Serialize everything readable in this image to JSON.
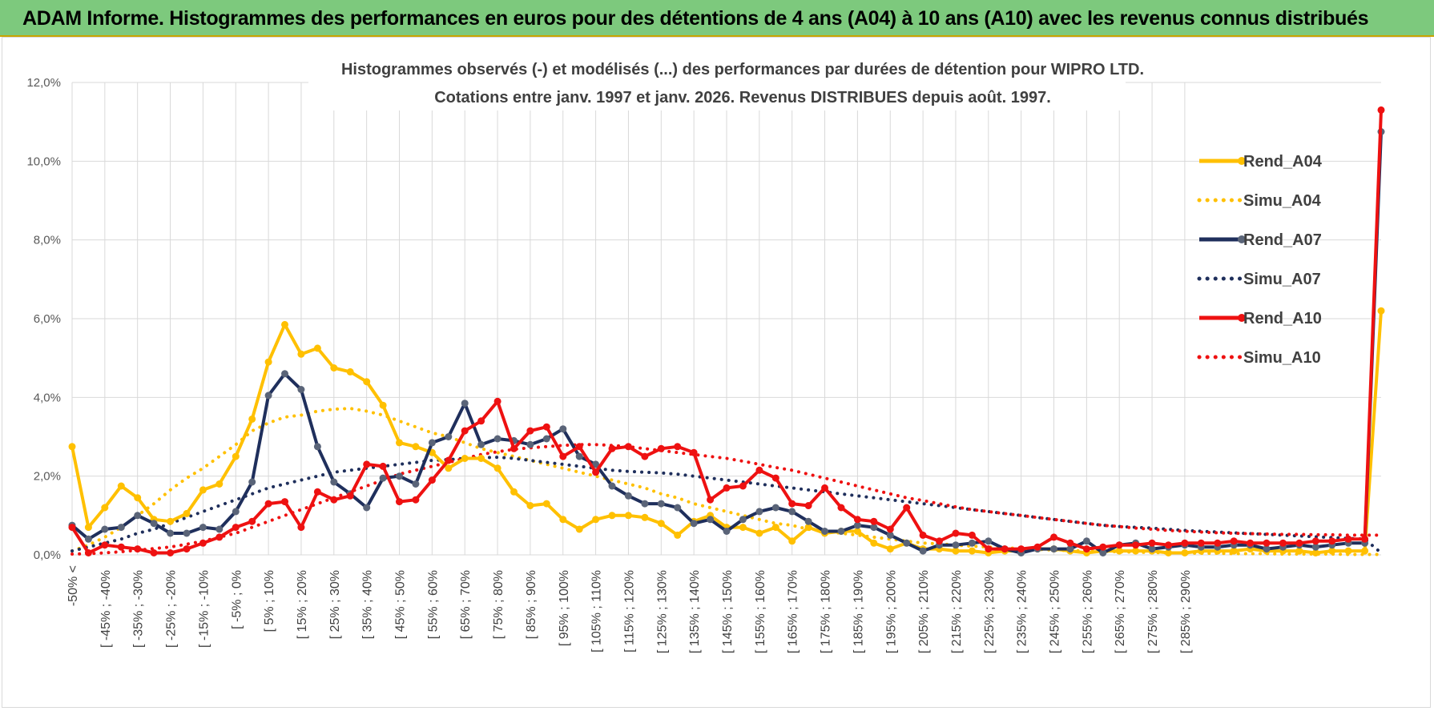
{
  "header": {
    "title": "ADAM Informe. Histogrammes des performances en euros pour des détentions de 4 ans (A04) à 10 ans (A10) avec les revenus connus distribués"
  },
  "colors": {
    "header_bg": "#7dc97d",
    "A04": "#ffc000",
    "A07": "#1f2f5c",
    "A07_marker": "#5a6478",
    "A10": "#ee1111"
  },
  "chart_data": {
    "type": "line",
    "title_lines": [
      "Histogrammes observés (-) et modélisés (...) des performances par durées de détention pour WIPRO LTD.",
      "Cotations entre janv. 1997 et janv. 2026. Revenus DISTRIBUES depuis août. 1997."
    ],
    "ylim": [
      0,
      12
    ],
    "yticks": [
      "0,0%",
      "2,0%",
      "4,0%",
      "6,0%",
      "8,0%",
      "10,0%",
      "12,0%"
    ],
    "grid": true,
    "legend_position": "right",
    "xtick_labels": [
      "-50% <",
      "[ -45% ; -40%",
      "[ -35% ; -30%",
      "[ -25% ; -20%",
      "[ -15% ; -10%",
      "[ -5% ; 0%",
      "[ 5% ; 10%",
      "[ 15% ; 20%",
      "[ 25% ; 30%",
      "[ 35% ; 40%",
      "[ 45% ; 50%",
      "[ 55% ; 60%",
      "[ 65% ; 70%",
      "[ 75% ; 80%",
      "[ 85% ; 90%",
      "[ 95% ; 100%",
      "[ 105% ; 110%",
      "[ 115% ; 120%",
      "[ 125% ; 130%",
      "[ 135% ; 140%",
      "[ 145% ; 150%",
      "[ 155% ; 160%",
      "[ 165% ; 170%",
      "[ 175% ; 180%",
      "[ 185% ; 190%",
      "[ 195% ; 200%",
      "[ 205% ; 210%",
      "[ 215% ; 220%",
      "[ 225% ; 230%",
      "[ 235% ; 240%",
      "[ 245% ; 250%",
      "[ 255% ; 260%",
      "[ 265% ; 270%",
      "[ 275% ; 280%",
      "[ 285% ; 290%"
    ],
    "x_range": [
      "-50%",
      "> 295%"
    ],
    "series": [
      {
        "name": "Rend_A04",
        "style": "solid",
        "color": "#ffc000",
        "values": [
          2.75,
          0.7,
          1.2,
          1.75,
          1.45,
          0.9,
          0.85,
          1.05,
          1.65,
          1.8,
          2.5,
          3.45,
          4.9,
          5.85,
          5.1,
          5.25,
          4.75,
          4.65,
          4.4,
          3.8,
          2.85,
          2.75,
          2.6,
          2.2,
          2.45,
          2.45,
          2.2,
          1.6,
          1.25,
          1.3,
          0.9,
          0.65,
          0.9,
          1.0,
          1.0,
          0.95,
          0.8,
          0.5,
          0.85,
          1.0,
          0.7,
          0.7,
          0.55,
          0.7,
          0.35,
          0.7,
          0.55,
          0.6,
          0.6,
          0.3,
          0.15,
          0.3,
          0.15,
          0.15,
          0.1,
          0.1,
          0.05,
          0.1,
          0.1,
          0.15,
          0.15,
          0.1,
          0.05,
          0.1,
          0.1,
          0.1,
          0.1,
          0.05,
          0.05,
          0.1,
          0.1,
          0.1,
          0.15,
          0.1,
          0.1,
          0.1,
          0.05,
          0.1,
          0.1,
          0.1,
          6.2
        ]
      },
      {
        "name": "Simu_A04",
        "style": "dotted",
        "color": "#ffc000",
        "values": [
          0.1,
          0.25,
          0.45,
          0.7,
          1.0,
          1.3,
          1.65,
          1.95,
          2.2,
          2.5,
          2.8,
          3.15,
          3.35,
          3.5,
          3.55,
          3.65,
          3.7,
          3.72,
          3.65,
          3.55,
          3.4,
          3.25,
          3.1,
          3.0,
          2.85,
          2.7,
          2.6,
          2.5,
          2.4,
          2.3,
          2.2,
          2.1,
          2.0,
          1.9,
          1.8,
          1.7,
          1.55,
          1.45,
          1.3,
          1.2,
          1.1,
          1.0,
          0.9,
          0.8,
          0.75,
          0.65,
          0.6,
          0.55,
          0.5,
          0.45,
          0.4,
          0.35,
          0.3,
          0.28,
          0.25,
          0.22,
          0.2,
          0.18,
          0.16,
          0.14,
          0.12,
          0.11,
          0.1,
          0.09,
          0.08,
          0.07,
          0.06,
          0.05,
          0.05,
          0.04,
          0.04,
          0.03,
          0.03,
          0.03,
          0.02,
          0.02,
          0.02,
          0.02,
          0.01,
          0.01,
          0.01
        ]
      },
      {
        "name": "Rend_A07",
        "style": "solid",
        "color": "#1f2f5c",
        "values": [
          0.75,
          0.4,
          0.65,
          0.7,
          1.0,
          0.8,
          0.55,
          0.55,
          0.7,
          0.65,
          1.1,
          1.85,
          4.05,
          4.6,
          4.2,
          2.75,
          1.85,
          1.55,
          1.2,
          1.95,
          2.0,
          1.8,
          2.85,
          3.0,
          3.85,
          2.8,
          2.95,
          2.9,
          2.8,
          2.95,
          3.2,
          2.5,
          2.3,
          1.75,
          1.5,
          1.3,
          1.3,
          1.2,
          0.8,
          0.9,
          0.6,
          0.9,
          1.1,
          1.2,
          1.1,
          0.85,
          0.6,
          0.6,
          0.75,
          0.7,
          0.5,
          0.3,
          0.1,
          0.25,
          0.25,
          0.3,
          0.35,
          0.15,
          0.05,
          0.15,
          0.15,
          0.15,
          0.35,
          0.05,
          0.25,
          0.3,
          0.15,
          0.2,
          0.25,
          0.2,
          0.2,
          0.25,
          0.25,
          0.15,
          0.2,
          0.25,
          0.2,
          0.25,
          0.3,
          0.3,
          10.75
        ]
      },
      {
        "name": "Simu_A07",
        "style": "dotted",
        "color": "#1f2f5c",
        "values": [
          0.1,
          0.2,
          0.3,
          0.4,
          0.55,
          0.65,
          0.8,
          0.95,
          1.1,
          1.25,
          1.4,
          1.55,
          1.7,
          1.8,
          1.9,
          2.0,
          2.1,
          2.15,
          2.2,
          2.25,
          2.3,
          2.35,
          2.4,
          2.42,
          2.45,
          2.47,
          2.48,
          2.45,
          2.4,
          2.35,
          2.3,
          2.25,
          2.2,
          2.15,
          2.12,
          2.1,
          2.08,
          2.05,
          2.0,
          1.95,
          1.9,
          1.85,
          1.8,
          1.75,
          1.7,
          1.65,
          1.6,
          1.55,
          1.5,
          1.45,
          1.4,
          1.35,
          1.3,
          1.25,
          1.2,
          1.15,
          1.1,
          1.05,
          1.0,
          0.95,
          0.9,
          0.85,
          0.8,
          0.75,
          0.72,
          0.7,
          0.68,
          0.65,
          0.62,
          0.6,
          0.58,
          0.56,
          0.54,
          0.52,
          0.5,
          0.48,
          0.46,
          0.44,
          0.42,
          0.4,
          0.05
        ]
      },
      {
        "name": "Rend_A10",
        "style": "solid",
        "color": "#ee1111",
        "values": [
          0.7,
          0.05,
          0.25,
          0.2,
          0.15,
          0.05,
          0.05,
          0.15,
          0.3,
          0.45,
          0.7,
          0.85,
          1.3,
          1.35,
          0.7,
          1.6,
          1.4,
          1.5,
          2.3,
          2.25,
          1.35,
          1.4,
          1.9,
          2.4,
          3.15,
          3.4,
          3.9,
          2.7,
          3.15,
          3.25,
          2.5,
          2.75,
          2.1,
          2.7,
          2.75,
          2.5,
          2.7,
          2.75,
          2.6,
          1.4,
          1.7,
          1.75,
          2.15,
          1.95,
          1.3,
          1.25,
          1.7,
          1.2,
          0.9,
          0.85,
          0.65,
          1.2,
          0.5,
          0.35,
          0.55,
          0.5,
          0.15,
          0.15,
          0.15,
          0.2,
          0.45,
          0.3,
          0.15,
          0.2,
          0.25,
          0.25,
          0.3,
          0.25,
          0.3,
          0.3,
          0.3,
          0.35,
          0.3,
          0.3,
          0.3,
          0.3,
          0.35,
          0.35,
          0.4,
          0.4,
          11.3
        ]
      },
      {
        "name": "Simu_A10",
        "style": "dotted",
        "color": "#ee1111",
        "values": [
          0.02,
          0.03,
          0.05,
          0.08,
          0.12,
          0.16,
          0.2,
          0.27,
          0.35,
          0.45,
          0.55,
          0.7,
          0.85,
          1.0,
          1.15,
          1.3,
          1.45,
          1.6,
          1.75,
          1.9,
          2.05,
          2.15,
          2.25,
          2.35,
          2.45,
          2.55,
          2.62,
          2.68,
          2.72,
          2.75,
          2.78,
          2.8,
          2.8,
          2.78,
          2.75,
          2.7,
          2.65,
          2.6,
          2.55,
          2.5,
          2.45,
          2.38,
          2.3,
          2.22,
          2.15,
          2.05,
          1.95,
          1.85,
          1.75,
          1.65,
          1.55,
          1.45,
          1.38,
          1.3,
          1.22,
          1.15,
          1.1,
          1.05,
          1.0,
          0.95,
          0.9,
          0.85,
          0.8,
          0.75,
          0.72,
          0.68,
          0.65,
          0.62,
          0.6,
          0.58,
          0.56,
          0.55,
          0.54,
          0.53,
          0.52,
          0.52,
          0.51,
          0.51,
          0.5,
          0.5,
          0.5
        ]
      }
    ]
  }
}
